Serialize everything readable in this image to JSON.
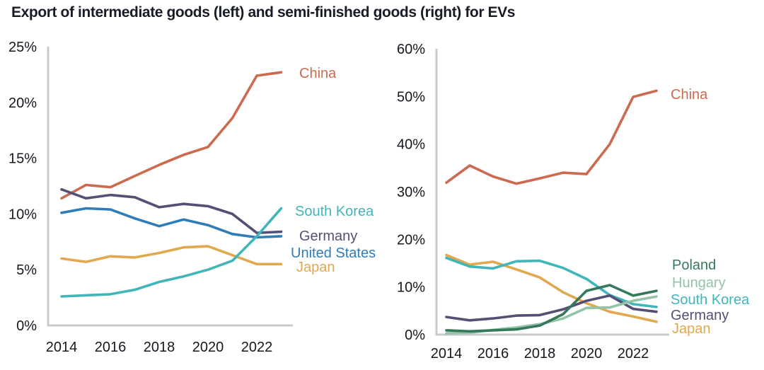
{
  "title": "Export of intermediate goods (left) and semi-finished goods (right) for EVs",
  "chart_data": [
    {
      "type": "line",
      "name": "intermediate-goods",
      "position": "left",
      "title": "Export of intermediate goods",
      "x": [
        2014,
        2015,
        2016,
        2017,
        2018,
        2019,
        2020,
        2021,
        2022,
        2023
      ],
      "x_tick_values": [
        2014,
        2016,
        2018,
        2020,
        2022
      ],
      "x_tick_labels": [
        "2014",
        "2016",
        "2018",
        "2020",
        "2022"
      ],
      "ylim": [
        0,
        25
      ],
      "y_tick_values": [
        0,
        5,
        10,
        15,
        20,
        25
      ],
      "y_tick_labels": [
        "0%",
        "5%",
        "10%",
        "15%",
        "20%",
        "25%"
      ],
      "grid": false,
      "unit": "percent",
      "legend_position": "right-of-line-ends",
      "series": [
        {
          "name": "China",
          "color": "#cc6a4f",
          "values": [
            11.4,
            12.6,
            12.4,
            13.4,
            14.4,
            15.3,
            16.0,
            18.6,
            22.4,
            22.7
          ]
        },
        {
          "name": "Germany",
          "color": "#544f75",
          "values": [
            12.2,
            11.4,
            11.7,
            11.5,
            10.6,
            10.9,
            10.7,
            10.0,
            8.3,
            8.4
          ]
        },
        {
          "name": "United States",
          "color": "#2e7cb8",
          "values": [
            10.1,
            10.5,
            10.4,
            9.6,
            8.9,
            9.5,
            9.0,
            8.2,
            7.9,
            8.0
          ]
        },
        {
          "name": "Japan",
          "color": "#e0a94f",
          "values": [
            6.0,
            5.7,
            6.2,
            6.1,
            6.5,
            7.0,
            7.1,
            6.3,
            5.5,
            5.5
          ]
        },
        {
          "name": "South Korea",
          "color": "#40b5ba",
          "values": [
            2.6,
            2.7,
            2.8,
            3.2,
            3.9,
            4.4,
            5.0,
            5.8,
            8.0,
            10.5
          ]
        }
      ]
    },
    {
      "type": "line",
      "name": "semi-finished-goods",
      "position": "right",
      "title": "Export of semi-finished goods",
      "x": [
        2014,
        2015,
        2016,
        2017,
        2018,
        2019,
        2020,
        2021,
        2022,
        2023
      ],
      "x_tick_values": [
        2014,
        2016,
        2018,
        2020,
        2022
      ],
      "x_tick_labels": [
        "2014",
        "2016",
        "2018",
        "2020",
        "2022"
      ],
      "ylim": [
        0,
        60
      ],
      "y_tick_values": [
        0,
        10,
        20,
        30,
        40,
        50,
        60
      ],
      "y_tick_labels": [
        "0%",
        "10%",
        "20%",
        "30%",
        "40%",
        "50%",
        "60%"
      ],
      "grid": false,
      "unit": "percent",
      "legend_position": "right-of-line-ends",
      "series": [
        {
          "name": "China",
          "color": "#cc6a4f",
          "values": [
            31.9,
            35.5,
            33.2,
            31.7,
            32.8,
            34.0,
            33.7,
            40.0,
            49.9,
            51.2
          ]
        },
        {
          "name": "Japan",
          "color": "#e0a94f",
          "values": [
            16.7,
            14.7,
            15.3,
            13.7,
            12.0,
            8.9,
            6.6,
            4.8,
            3.8,
            2.7
          ]
        },
        {
          "name": "South Korea",
          "color": "#40b5ba",
          "values": [
            16.1,
            14.3,
            13.9,
            15.4,
            15.5,
            14.0,
            11.7,
            8.3,
            6.4,
            5.8
          ]
        },
        {
          "name": "Germany",
          "color": "#544f75",
          "values": [
            3.7,
            3.0,
            3.4,
            4.0,
            4.1,
            5.3,
            7.1,
            8.2,
            5.4,
            4.8
          ]
        },
        {
          "name": "Hungary",
          "color": "#92c4a5",
          "values": [
            0.3,
            0.4,
            1.0,
            1.5,
            2.2,
            3.4,
            5.6,
            5.7,
            7.1,
            8.0
          ]
        },
        {
          "name": "Poland",
          "color": "#35795a",
          "values": [
            0.9,
            0.7,
            0.9,
            1.1,
            1.9,
            4.3,
            9.2,
            10.4,
            8.2,
            9.2
          ]
        }
      ]
    }
  ],
  "axis_color": "#c9c9c9"
}
